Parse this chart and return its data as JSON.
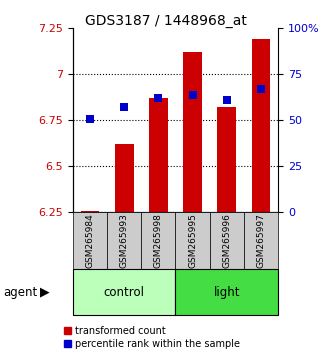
{
  "title": "GDS3187 / 1448968_at",
  "samples": [
    "GSM265984",
    "GSM265993",
    "GSM265998",
    "GSM265995",
    "GSM265996",
    "GSM265997"
  ],
  "transformed_counts": [
    6.26,
    6.62,
    6.87,
    7.12,
    6.82,
    7.19
  ],
  "percentile_ranks": [
    51,
    57,
    62,
    64,
    61,
    67
  ],
  "ylim_left": [
    6.25,
    7.25
  ],
  "ylim_right": [
    0,
    100
  ],
  "yticks_left": [
    6.25,
    6.5,
    6.75,
    7.0,
    7.25
  ],
  "yticks_right": [
    0,
    25,
    50,
    75,
    100
  ],
  "yticklabels_left": [
    "6.25",
    "6.5",
    "6.75",
    "7",
    "7.25"
  ],
  "yticklabels_right": [
    "0",
    "25",
    "50",
    "75",
    "100%"
  ],
  "bar_color": "#cc0000",
  "dot_color": "#0000cc",
  "bar_bottom": 6.25,
  "bar_width": 0.55,
  "control_color": "#bbffbb",
  "light_color": "#44dd44",
  "legend_items": [
    "transformed count",
    "percentile rank within the sample"
  ],
  "legend_colors": [
    "#cc0000",
    "#0000cc"
  ],
  "tick_fontsize": 8,
  "title_fontsize": 10,
  "dot_size": 30,
  "gridline_color": "#000000",
  "gridline_style": "dotted",
  "gridline_lw": 0.8
}
